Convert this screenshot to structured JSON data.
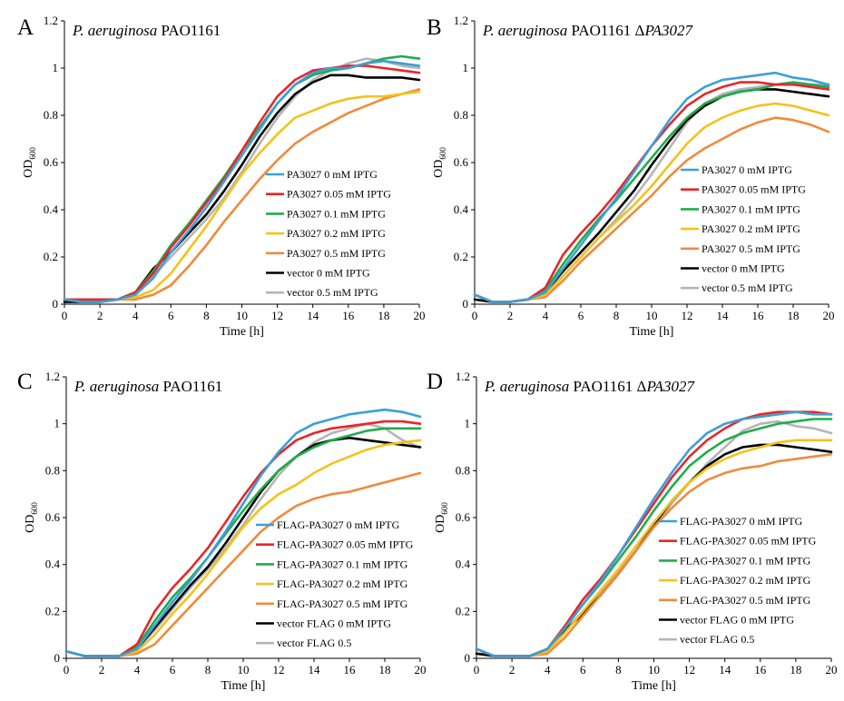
{
  "chart_data": [
    {
      "panel": "A",
      "type": "line",
      "title_italic": "P. aeruginosa",
      "title_rest": " PAO1161",
      "title_italic2": "",
      "xlabel": "Time [h]",
      "ylabel": "OD",
      "ylabel_sub": "600",
      "xlim": [
        0,
        20
      ],
      "ylim": [
        0,
        1.2
      ],
      "xticks": [
        "0",
        "2",
        "4",
        "6",
        "8",
        "10",
        "12",
        "14",
        "16",
        "18",
        "20"
      ],
      "yticks": [
        "0",
        "0.2",
        "0.4",
        "0.6",
        "0.8",
        "1",
        "1.2"
      ],
      "legend_position": "lower-right",
      "x": [
        0,
        1,
        2,
        3,
        4,
        5,
        6,
        7,
        8,
        9,
        10,
        11,
        12,
        13,
        14,
        15,
        16,
        17,
        18,
        19,
        20
      ],
      "series": [
        {
          "name": "PA3027 0 mM IPTG",
          "color": "#3c9fd8",
          "values": [
            0.02,
            0.01,
            0.01,
            0.02,
            0.04,
            0.11,
            0.22,
            0.31,
            0.41,
            0.52,
            0.63,
            0.74,
            0.85,
            0.93,
            0.98,
            1.0,
            1.0,
            1.02,
            1.03,
            1.02,
            1.01
          ]
        },
        {
          "name": "PA3027 0.05 mM IPTG",
          "color": "#e8262a",
          "values": [
            0.02,
            0.02,
            0.02,
            0.02,
            0.05,
            0.13,
            0.24,
            0.33,
            0.43,
            0.53,
            0.65,
            0.77,
            0.88,
            0.95,
            0.99,
            1.0,
            1.01,
            1.01,
            1.0,
            0.99,
            0.98
          ]
        },
        {
          "name": "PA3027 0.1 mM IPTG",
          "color": "#1fad4b",
          "values": [
            0.02,
            0.01,
            0.01,
            0.02,
            0.05,
            0.14,
            0.25,
            0.34,
            0.44,
            0.54,
            0.65,
            0.75,
            0.85,
            0.93,
            0.97,
            0.99,
            1.0,
            1.02,
            1.04,
            1.05,
            1.04
          ]
        },
        {
          "name": "PA3027 0.2 mM IPTG",
          "color": "#f5c21b",
          "values": [
            0.02,
            0.02,
            0.02,
            0.02,
            0.03,
            0.06,
            0.13,
            0.23,
            0.33,
            0.44,
            0.55,
            0.64,
            0.72,
            0.79,
            0.82,
            0.85,
            0.87,
            0.88,
            0.88,
            0.89,
            0.9
          ]
        },
        {
          "name": "PA3027 0.5 mM IPTG",
          "color": "#f08a3c",
          "values": [
            0.02,
            0.02,
            0.02,
            0.02,
            0.02,
            0.04,
            0.08,
            0.16,
            0.25,
            0.35,
            0.44,
            0.53,
            0.61,
            0.68,
            0.73,
            0.77,
            0.81,
            0.84,
            0.87,
            0.89,
            0.91
          ]
        },
        {
          "name": "vector 0 mM IPTG",
          "color": "#000000",
          "values": [
            0.01,
            0.01,
            0.01,
            0.02,
            0.05,
            0.15,
            0.22,
            0.3,
            0.38,
            0.48,
            0.59,
            0.71,
            0.81,
            0.89,
            0.94,
            0.97,
            0.97,
            0.96,
            0.96,
            0.96,
            0.95
          ]
        },
        {
          "name": "vector 0.5 mM IPTG",
          "color": "#b5b5b5",
          "values": [
            0.01,
            0.01,
            0.01,
            0.02,
            0.05,
            0.12,
            0.2,
            0.28,
            0.36,
            0.45,
            0.56,
            0.68,
            0.79,
            0.88,
            0.95,
            0.99,
            1.02,
            1.04,
            1.03,
            1.01,
            1.0
          ]
        }
      ]
    },
    {
      "panel": "B",
      "type": "line",
      "title_italic": "P. aeruginosa",
      "title_rest": " PAO1161 Δ",
      "title_italic2": "PA3027",
      "xlabel": "Time [h]",
      "ylabel": "OD",
      "ylabel_sub": "600",
      "xlim": [
        0,
        20
      ],
      "ylim": [
        0,
        1.2
      ],
      "xticks": [
        "0",
        "2",
        "4",
        "6",
        "8",
        "10",
        "12",
        "14",
        "16",
        "18",
        "20"
      ],
      "yticks": [
        "0",
        "0.2",
        "0.4",
        "0.6",
        "0.8",
        "1",
        "1.2"
      ],
      "legend_position": "lower-right",
      "x": [
        0,
        1,
        2,
        3,
        4,
        5,
        6,
        7,
        8,
        9,
        10,
        11,
        12,
        13,
        14,
        15,
        16,
        17,
        18,
        19,
        20
      ],
      "series": [
        {
          "name": "PA3027 0 mM IPTG",
          "color": "#3c9fd8",
          "values": [
            0.04,
            0.01,
            0.01,
            0.02,
            0.05,
            0.15,
            0.25,
            0.35,
            0.45,
            0.56,
            0.67,
            0.78,
            0.87,
            0.92,
            0.95,
            0.96,
            0.97,
            0.98,
            0.96,
            0.95,
            0.93
          ]
        },
        {
          "name": "PA3027 0.05 mM IPTG",
          "color": "#e8262a",
          "values": [
            0.04,
            0.01,
            0.01,
            0.02,
            0.07,
            0.21,
            0.3,
            0.38,
            0.47,
            0.57,
            0.67,
            0.76,
            0.84,
            0.89,
            0.92,
            0.94,
            0.94,
            0.93,
            0.93,
            0.92,
            0.91
          ]
        },
        {
          "name": "PA3027 0.1 mM IPTG",
          "color": "#1fad4b",
          "values": [
            0.04,
            0.01,
            0.01,
            0.02,
            0.06,
            0.17,
            0.27,
            0.36,
            0.44,
            0.53,
            0.62,
            0.71,
            0.79,
            0.85,
            0.88,
            0.9,
            0.91,
            0.93,
            0.94,
            0.93,
            0.92
          ]
        },
        {
          "name": "PA3027 0.2 mM IPTG",
          "color": "#f5c21b",
          "values": [
            0.04,
            0.01,
            0.01,
            0.02,
            0.04,
            0.12,
            0.2,
            0.28,
            0.35,
            0.42,
            0.5,
            0.59,
            0.68,
            0.75,
            0.79,
            0.82,
            0.84,
            0.85,
            0.84,
            0.82,
            0.8
          ]
        },
        {
          "name": "PA3027 0.5 mM IPTG",
          "color": "#f08a3c",
          "values": [
            0.04,
            0.01,
            0.01,
            0.02,
            0.03,
            0.1,
            0.18,
            0.25,
            0.32,
            0.39,
            0.46,
            0.54,
            0.61,
            0.66,
            0.7,
            0.74,
            0.77,
            0.79,
            0.78,
            0.76,
            0.73
          ]
        },
        {
          "name": "vector 0 mM IPTG",
          "color": "#000000",
          "values": [
            0.02,
            0.01,
            0.01,
            0.02,
            0.05,
            0.14,
            0.22,
            0.3,
            0.39,
            0.48,
            0.59,
            0.69,
            0.78,
            0.84,
            0.88,
            0.9,
            0.91,
            0.91,
            0.9,
            0.89,
            0.88
          ]
        },
        {
          "name": "vector 0.5 mM IPTG",
          "color": "#b5b5b5",
          "values": [
            0.02,
            0.01,
            0.01,
            0.02,
            0.04,
            0.12,
            0.2,
            0.28,
            0.36,
            0.45,
            0.55,
            0.66,
            0.77,
            0.85,
            0.89,
            0.91,
            0.92,
            0.93,
            0.93,
            0.93,
            0.93
          ]
        }
      ]
    },
    {
      "panel": "C",
      "type": "line",
      "title_italic": "P. aeruginosa",
      "title_rest": " PAO1161",
      "title_italic2": "",
      "xlabel": "Time [h]",
      "ylabel": "OD",
      "ylabel_sub": "600",
      "xlim": [
        0,
        20
      ],
      "ylim": [
        0,
        1.2
      ],
      "xticks": [
        "0",
        "2",
        "4",
        "6",
        "8",
        "10",
        "12",
        "14",
        "16",
        "18",
        "20"
      ],
      "yticks": [
        "0",
        "0.2",
        "0.4",
        "0.6",
        "0.8",
        "1",
        "1.2"
      ],
      "legend_position": "lower-right",
      "x": [
        0,
        1,
        2,
        3,
        4,
        5,
        6,
        7,
        8,
        9,
        10,
        11,
        12,
        13,
        14,
        15,
        16,
        17,
        18,
        19,
        20
      ],
      "series": [
        {
          "name": "FLAG-PA3027 0 mM IPTG",
          "color": "#3c9fd8",
          "values": [
            0.03,
            0.01,
            0.01,
            0.01,
            0.04,
            0.14,
            0.24,
            0.33,
            0.43,
            0.54,
            0.66,
            0.78,
            0.88,
            0.96,
            1.0,
            1.02,
            1.04,
            1.05,
            1.06,
            1.05,
            1.03
          ]
        },
        {
          "name": "FLAG-PA3027 0.05 mM IPTG",
          "color": "#e8262a",
          "values": [
            0.03,
            0.01,
            0.01,
            0.01,
            0.06,
            0.2,
            0.3,
            0.38,
            0.47,
            0.58,
            0.69,
            0.79,
            0.87,
            0.93,
            0.96,
            0.98,
            0.99,
            1.0,
            1.01,
            1.01,
            1.0
          ]
        },
        {
          "name": "FLAG-PA3027 0.1 mM IPTG",
          "color": "#1fad4b",
          "values": [
            0.03,
            0.01,
            0.01,
            0.01,
            0.05,
            0.16,
            0.26,
            0.34,
            0.43,
            0.53,
            0.63,
            0.72,
            0.8,
            0.86,
            0.9,
            0.93,
            0.95,
            0.97,
            0.98,
            0.98,
            0.98
          ]
        },
        {
          "name": "FLAG-PA3027 0.2 mM IPTG",
          "color": "#f5c21b",
          "values": [
            0.03,
            0.01,
            0.01,
            0.01,
            0.03,
            0.1,
            0.19,
            0.27,
            0.36,
            0.46,
            0.56,
            0.64,
            0.7,
            0.74,
            0.79,
            0.83,
            0.86,
            0.89,
            0.91,
            0.92,
            0.93
          ]
        },
        {
          "name": "FLAG-PA3027 0.5 mM IPTG",
          "color": "#f08a3c",
          "values": [
            0.03,
            0.01,
            0.01,
            0.01,
            0.02,
            0.06,
            0.14,
            0.22,
            0.3,
            0.38,
            0.46,
            0.54,
            0.6,
            0.65,
            0.68,
            0.7,
            0.71,
            0.73,
            0.75,
            0.77,
            0.79
          ]
        },
        {
          "name": "vector FLAG 0 mM IPTG",
          "color": "#000000",
          "values": [
            0.03,
            0.01,
            0.01,
            0.01,
            0.04,
            0.13,
            0.22,
            0.31,
            0.39,
            0.49,
            0.6,
            0.71,
            0.8,
            0.86,
            0.91,
            0.93,
            0.94,
            0.93,
            0.92,
            0.91,
            0.9
          ]
        },
        {
          "name": "vector FLAG 0.5",
          "color": "#b5b5b5",
          "values": [
            0.03,
            0.01,
            0.01,
            0.01,
            0.04,
            0.12,
            0.21,
            0.3,
            0.38,
            0.47,
            0.57,
            0.68,
            0.78,
            0.86,
            0.92,
            0.96,
            0.98,
            1.0,
            0.98,
            0.93,
            0.9
          ]
        }
      ]
    },
    {
      "panel": "D",
      "type": "line",
      "title_italic": "P. aeruginosa",
      "title_rest": " PAO1161 Δ",
      "title_italic2": "PA3027",
      "xlabel": "Time [h]",
      "ylabel": "OD",
      "ylabel_sub": "600",
      "xlim": [
        0,
        20
      ],
      "ylim": [
        0,
        1.2
      ],
      "xticks": [
        "0",
        "2",
        "4",
        "6",
        "8",
        "10",
        "12",
        "14",
        "16",
        "18",
        "20"
      ],
      "yticks": [
        "0",
        "0.2",
        "0.4",
        "0.6",
        "0.8",
        "1",
        "1.2"
      ],
      "legend_position": "lower-right",
      "x": [
        0,
        1,
        2,
        3,
        4,
        5,
        6,
        7,
        8,
        9,
        10,
        11,
        12,
        13,
        14,
        15,
        16,
        17,
        18,
        19,
        20
      ],
      "series": [
        {
          "name": "FLAG-PA3027 0 mM IPTG",
          "color": "#3c9fd8",
          "values": [
            0.04,
            0.01,
            0.01,
            0.01,
            0.04,
            0.13,
            0.23,
            0.33,
            0.44,
            0.56,
            0.68,
            0.79,
            0.89,
            0.96,
            1.0,
            1.02,
            1.03,
            1.04,
            1.05,
            1.04,
            1.04
          ]
        },
        {
          "name": "FLAG-PA3027 0.05 mM IPTG",
          "color": "#e8262a",
          "values": [
            0.04,
            0.01,
            0.01,
            0.01,
            0.04,
            0.14,
            0.25,
            0.34,
            0.44,
            0.55,
            0.66,
            0.77,
            0.86,
            0.93,
            0.98,
            1.02,
            1.04,
            1.05,
            1.05,
            1.05,
            1.04
          ]
        },
        {
          "name": "FLAG-PA3027 0.1 mM IPTG",
          "color": "#1fad4b",
          "values": [
            0.04,
            0.01,
            0.01,
            0.01,
            0.04,
            0.13,
            0.23,
            0.32,
            0.42,
            0.52,
            0.63,
            0.73,
            0.82,
            0.88,
            0.93,
            0.96,
            0.98,
            1.0,
            1.01,
            1.02,
            1.02
          ]
        },
        {
          "name": "FLAG-PA3027 0.2 mM IPTG",
          "color": "#f5c21b",
          "values": [
            0.04,
            0.01,
            0.01,
            0.01,
            0.03,
            0.11,
            0.2,
            0.29,
            0.38,
            0.48,
            0.58,
            0.67,
            0.75,
            0.81,
            0.85,
            0.88,
            0.9,
            0.92,
            0.93,
            0.93,
            0.93
          ]
        },
        {
          "name": "FLAG-PA3027 0.5 mM IPTG",
          "color": "#f08a3c",
          "values": [
            0.04,
            0.01,
            0.01,
            0.01,
            0.02,
            0.09,
            0.18,
            0.27,
            0.36,
            0.46,
            0.56,
            0.64,
            0.71,
            0.76,
            0.79,
            0.81,
            0.82,
            0.84,
            0.85,
            0.86,
            0.87
          ]
        },
        {
          "name": "vector FLAG 0 mM IPTG",
          "color": "#000000",
          "values": [
            0.02,
            0.01,
            0.01,
            0.01,
            0.04,
            0.12,
            0.19,
            0.27,
            0.36,
            0.46,
            0.57,
            0.67,
            0.75,
            0.82,
            0.87,
            0.9,
            0.91,
            0.91,
            0.9,
            0.89,
            0.88
          ]
        },
        {
          "name": "vector FLAG 0.5",
          "color": "#b5b5b5",
          "values": [
            0.02,
            0.01,
            0.01,
            0.01,
            0.04,
            0.12,
            0.2,
            0.28,
            0.37,
            0.46,
            0.56,
            0.66,
            0.75,
            0.83,
            0.9,
            0.97,
            1.0,
            1.01,
            0.99,
            0.98,
            0.96
          ]
        }
      ]
    }
  ]
}
